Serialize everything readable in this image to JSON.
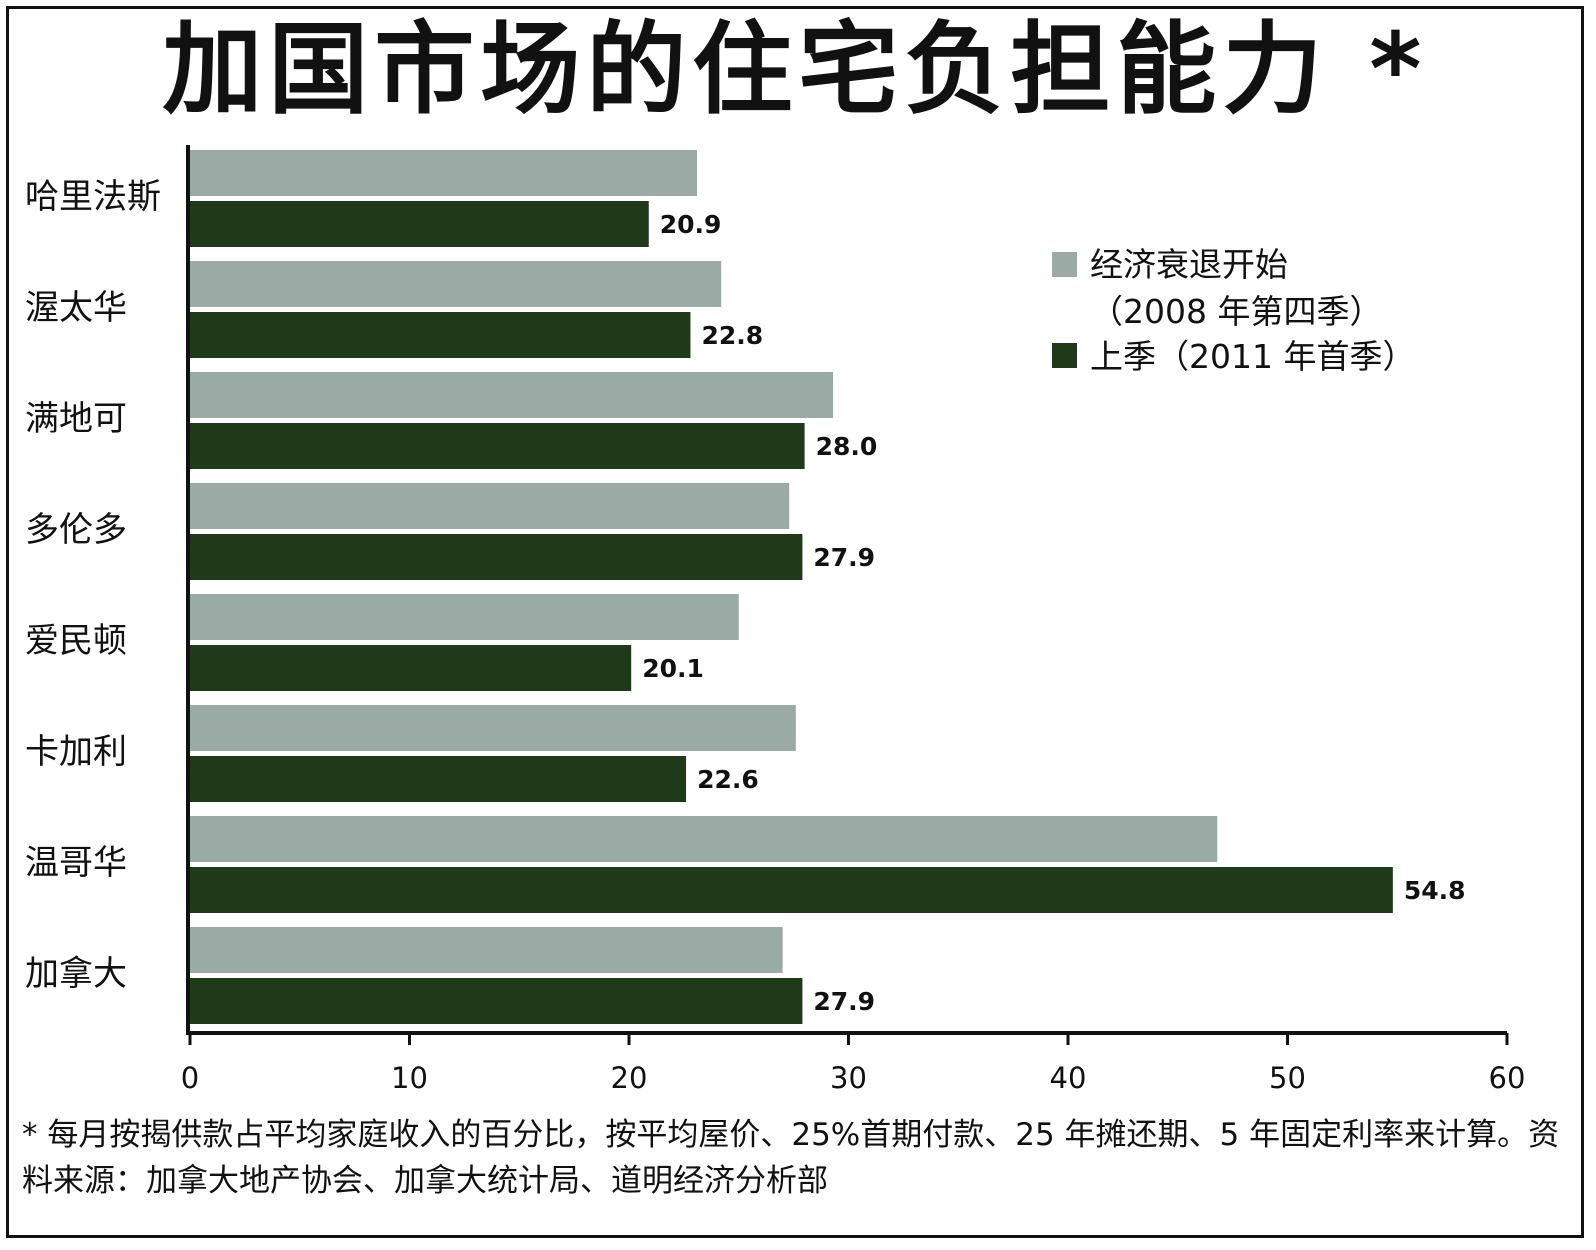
{
  "title": "加国市场的住宅负担能力 *",
  "footnote": "* 每月按揭供款占平均家庭收入的百分比，按平均屋价、25%首期付款、25 年摊还期、5 年固定利率来计算。资料来源：加拿大地产协会、加拿大统计局、道明经济分析部",
  "chart_data": {
    "type": "bar",
    "orientation": "horizontal",
    "categories": [
      "哈里法斯",
      "渥太华",
      "满地可",
      "多伦多",
      "爱民顿",
      "卡加利",
      "温哥华",
      "加拿大"
    ],
    "series": [
      {
        "name": "经济衰退开始\n（2008 年第四季）",
        "color": "#9aaba6",
        "values": [
          23.1,
          24.2,
          29.3,
          27.3,
          25.0,
          27.6,
          46.8,
          27.0
        ],
        "labels": null
      },
      {
        "name": "上季（2011 年首季）",
        "color": "#1e3a18",
        "values": [
          20.9,
          22.8,
          28.0,
          27.9,
          20.1,
          22.6,
          54.8,
          27.9
        ],
        "labels": [
          "20.9",
          "22.8",
          "28.0",
          "27.9",
          "20.1",
          "22.6",
          "54.8",
          "27.9"
        ]
      }
    ],
    "xlim": [
      0,
      60
    ],
    "xticks": [
      "0",
      "10",
      "20",
      "30",
      "40",
      "50",
      "60"
    ],
    "xlabel": "",
    "ylabel": "",
    "grid": false,
    "legend_position": "top-right"
  }
}
